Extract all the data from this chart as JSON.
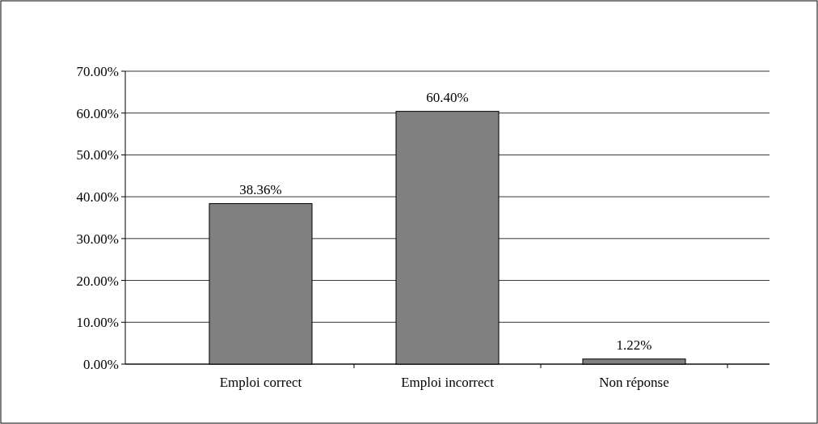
{
  "chart_data": {
    "type": "bar",
    "categories": [
      "Emploi correct",
      "Emploi incorrect",
      "Non réponse"
    ],
    "values": [
      38.36,
      60.4,
      1.22
    ],
    "color": "#808080",
    "value_labels": [
      "38.36%",
      "60.40%",
      "1.22%"
    ],
    "ylim": [
      0,
      70
    ],
    "yticks": [
      {
        "value": 0,
        "label": "0.00%"
      },
      {
        "value": 10,
        "label": "10.00%"
      },
      {
        "value": 20,
        "label": "20.00%"
      },
      {
        "value": 30,
        "label": "30.00%"
      },
      {
        "value": 40,
        "label": "40.00%"
      },
      {
        "value": 50,
        "label": "50.00%"
      },
      {
        "value": 60,
        "label": "60.00%"
      },
      {
        "value": 70,
        "label": "70.00%"
      }
    ],
    "grid": true
  }
}
